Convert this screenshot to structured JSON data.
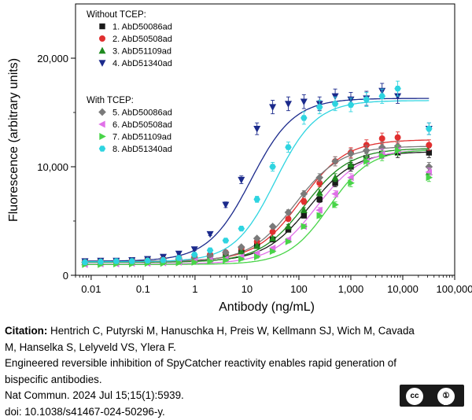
{
  "chart_data": {
    "type": "scatter",
    "xlabel": "Antibody (ng/mL)",
    "ylabel": "Fluorescence (arbitrary units)",
    "x_scale": "log",
    "xlim": [
      0.005,
      100000
    ],
    "ylim": [
      0,
      25000
    ],
    "x_ticks": [
      0.01,
      0.1,
      1,
      10,
      100,
      1000,
      10000,
      100000
    ],
    "x_tick_labels": [
      "0.01",
      "0.1",
      "1",
      "10",
      "100",
      "1,000",
      "10,000",
      "100,000"
    ],
    "y_ticks": [
      0,
      10000,
      20000
    ],
    "y_tick_labels": [
      "0",
      "10,000",
      "20,000"
    ],
    "legend_position": "top-left",
    "legend_groups": [
      {
        "title": "Without TCEP:",
        "series_index": [
          0,
          1,
          2,
          3
        ]
      },
      {
        "title": "With TCEP:",
        "series_index": [
          4,
          5,
          6,
          7
        ]
      }
    ],
    "x": [
      0.0076,
      0.0152,
      0.0305,
      0.061,
      0.122,
      0.244,
      0.488,
      0.977,
      1.95,
      3.9,
      7.8,
      15.6,
      31.25,
      62.5,
      125,
      250,
      500,
      1000,
      2000,
      4000,
      8000,
      32000
    ],
    "series": [
      {
        "name": "1. AbD50086ad",
        "color": "#1a1a1a",
        "marker": "square",
        "values": [
          1200,
          1250,
          1300,
          1300,
          1350,
          1400,
          1500,
          1600,
          1700,
          1900,
          2200,
          2700,
          3300,
          4200,
          5500,
          7000,
          8500,
          10000,
          10800,
          11200,
          11300,
          11300
        ],
        "fit": {
          "bottom": 1250,
          "top": 11400,
          "ec50": 160,
          "hill": 1.0
        }
      },
      {
        "name": "2. AbD50508ad",
        "color": "#e03030",
        "marker": "circle",
        "values": [
          1250,
          1300,
          1300,
          1350,
          1400,
          1450,
          1600,
          1700,
          1900,
          2100,
          2500,
          3100,
          4000,
          5200,
          6800,
          8500,
          10500,
          11300,
          12000,
          12600,
          12700,
          12000
        ],
        "fit": {
          "bottom": 1300,
          "top": 12500,
          "ec50": 110,
          "hill": 1.0
        }
      },
      {
        "name": "3. AbD51109ad",
        "color": "#1f8a1f",
        "marker": "triangle-up",
        "values": [
          1200,
          1200,
          1250,
          1250,
          1300,
          1350,
          1450,
          1550,
          1700,
          1900,
          2200,
          2700,
          3400,
          4500,
          6000,
          7600,
          9000,
          10200,
          10900,
          11300,
          11500,
          9500
        ],
        "fit": {
          "bottom": 1200,
          "top": 11700,
          "ec50": 130,
          "hill": 1.0
        }
      },
      {
        "name": "4. AbD51340ad",
        "color": "#1b2a8c",
        "marker": "triangle-down",
        "values": [
          1300,
          1350,
          1350,
          1400,
          1500,
          1700,
          2000,
          2400,
          3800,
          6500,
          8800,
          13500,
          15500,
          15800,
          16000,
          15800,
          16500,
          16200,
          16300,
          17000,
          16500,
          13500
        ],
        "fit": {
          "bottom": 1300,
          "top": 16300,
          "ec50": 12,
          "hill": 1.05
        }
      },
      {
        "name": "5. AbD50086ad",
        "color": "#7a7a7a",
        "marker": "diamond",
        "values": [
          1200,
          1250,
          1250,
          1300,
          1350,
          1400,
          1500,
          1600,
          1800,
          2100,
          2600,
          3400,
          4500,
          5800,
          7500,
          9000,
          10500,
          11200,
          11500,
          11800,
          11900,
          10000
        ],
        "fit": {
          "bottom": 1250,
          "top": 11900,
          "ec50": 85,
          "hill": 1.0
        }
      },
      {
        "name": "6. AbD50508ad",
        "color": "#e070e8",
        "marker": "triangle-left",
        "values": [
          1000,
          1050,
          1050,
          1100,
          1100,
          1150,
          1200,
          1300,
          1400,
          1500,
          1700,
          2000,
          2500,
          3300,
          4500,
          6000,
          7500,
          9000,
          10500,
          11200,
          11500,
          9500
        ],
        "fit": {
          "bottom": 1050,
          "top": 11600,
          "ec50": 220,
          "hill": 1.0
        }
      },
      {
        "name": "7. AbD51109ad",
        "color": "#48d448",
        "marker": "triangle-right",
        "values": [
          1000,
          1000,
          1050,
          1050,
          1100,
          1100,
          1150,
          1200,
          1300,
          1400,
          1500,
          1700,
          2200,
          3100,
          4500,
          5500,
          6500,
          8500,
          10500,
          11000,
          11500,
          9000
        ],
        "fit": {
          "bottom": 1000,
          "top": 11600,
          "ec50": 380,
          "hill": 1.1
        }
      },
      {
        "name": "8. AbD51340ad",
        "color": "#2ed4e0",
        "marker": "hexagon",
        "values": [
          1200,
          1250,
          1300,
          1300,
          1350,
          1400,
          1600,
          1900,
          2300,
          3200,
          4300,
          7000,
          10000,
          11800,
          14500,
          15500,
          15800,
          15700,
          16200,
          16500,
          17200,
          13500
        ],
        "fit": {
          "bottom": 1250,
          "top": 16100,
          "ec50": 35,
          "hill": 1.1
        }
      }
    ]
  },
  "caption": {
    "citation_label": "Citation:",
    "authors_line1": " Hentrich C, Putyrski M, Hanuschka H, Preis W, Kellmann SJ, Wich M, Cavada",
    "authors_line2": "M, Hanselka S, Lelyveld VS, Ylera F.",
    "title_line1": "Engineered reversible inhibition of SpyCatcher reactivity enables rapid generation of",
    "title_line2": "bispecific antibodies.",
    "journal": "Nat Commun. 2024 Jul 15;15(1):5939.",
    "doi": "doi: 10.1038/s41467-024-50296-y."
  },
  "license_badge": {
    "left": "cc",
    "right": "①",
    "sub": "BY"
  }
}
